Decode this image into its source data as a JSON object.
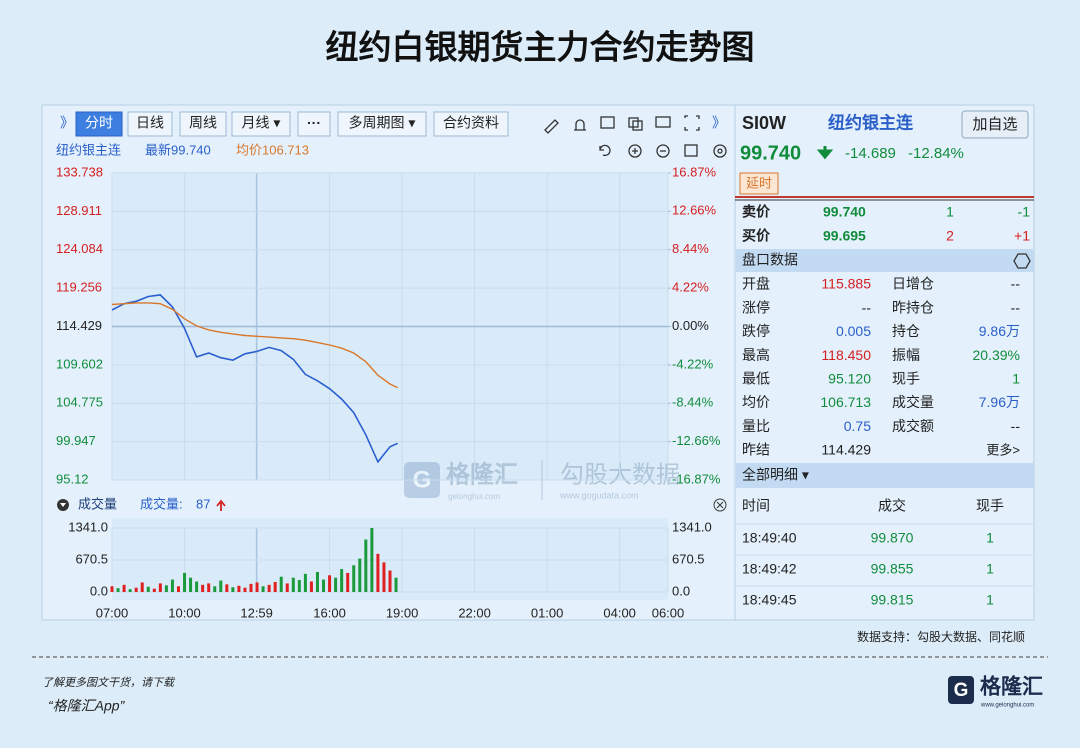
{
  "title": "纽约白银期货主力合约走势图",
  "toolbar": {
    "expand": "》",
    "buttons": [
      "分时",
      "日线",
      "周线",
      "月线 ▾",
      "···",
      "多周期图 ▾",
      "合约资料"
    ],
    "collapse": "》"
  },
  "info_line": {
    "name": "纽约银主连",
    "latest": "最新99.740",
    "average": "均价106.713"
  },
  "chart_data": [
    {
      "type": "line",
      "x": [
        "07:00",
        "07:30",
        "08:00",
        "08:30",
        "09:00",
        "09:30",
        "10:00",
        "10:30",
        "11:00",
        "11:30",
        "12:00",
        "12:30",
        "13:00",
        "13:30",
        "14:00",
        "14:30",
        "15:00",
        "15:30",
        "16:00",
        "16:30",
        "17:00",
        "17:30",
        "18:00",
        "18:30",
        "18:49"
      ],
      "series": [
        {
          "color": "#2b5fcf",
          "values": [
            116.5,
            117.3,
            117.6,
            118.2,
            118.4,
            116.9,
            114.2,
            110.6,
            111.1,
            110.5,
            110.2,
            111.0,
            111.3,
            111.8,
            111.4,
            110.3,
            108.4,
            107.6,
            106.6,
            105.3,
            103.6,
            100.8,
            97.4,
            99.3,
            99.74
          ]
        },
        {
          "color": "#d9772b",
          "values": [
            117.2,
            117.3,
            117.4,
            117.4,
            117.3,
            116.6,
            115.4,
            114.5,
            114.0,
            113.7,
            113.5,
            113.3,
            113.2,
            113.1,
            113.0,
            112.9,
            112.7,
            112.4,
            112.1,
            111.7,
            111.1,
            110.0,
            108.3,
            107.2,
            106.713
          ]
        }
      ],
      "xlim": [
        "07:00",
        "06:00"
      ],
      "xticks": [
        "07:00",
        "10:00",
        "12:59",
        "16:00",
        "19:00",
        "22:00",
        "01:00",
        "04:00",
        "06:00"
      ],
      "ylim": [
        95.12,
        133.738
      ],
      "yticks": [
        133.738,
        128.911,
        124.084,
        119.256,
        114.429,
        109.602,
        104.775,
        99.947,
        95.12
      ],
      "y2lim": [
        -16.87,
        16.87
      ],
      "y2ticks": [
        {
          "value": 16.87,
          "label": "16.87%"
        },
        {
          "value": 12.66,
          "label": "12.66%"
        },
        {
          "value": 8.44,
          "label": "8.44%"
        },
        {
          "value": 4.22,
          "label": "4.22%"
        },
        {
          "value": 0,
          "label": "0.00%"
        },
        {
          "value": -4.22,
          "label": "-4.22%"
        },
        {
          "value": -8.44,
          "label": "-8.44%"
        },
        {
          "value": -12.66,
          "label": "-12.66%"
        },
        {
          "value": -16.87,
          "label": "-16.87%"
        }
      ],
      "grid": true
    },
    {
      "type": "bar",
      "title": "成交量",
      "volume_label": "成交量:",
      "volume_value": 87,
      "x": [
        "07:00",
        "07:15",
        "07:30",
        "07:45",
        "08:00",
        "08:15",
        "08:30",
        "08:45",
        "09:00",
        "09:15",
        "09:30",
        "09:45",
        "10:00",
        "10:15",
        "10:30",
        "10:45",
        "11:00",
        "11:15",
        "11:30",
        "11:45",
        "12:00",
        "12:15",
        "12:30",
        "12:45",
        "13:00",
        "13:15",
        "13:30",
        "13:45",
        "14:00",
        "14:15",
        "14:30",
        "14:45",
        "15:00",
        "15:15",
        "15:30",
        "15:45",
        "16:00",
        "16:15",
        "16:30",
        "16:45",
        "17:00",
        "17:15",
        "17:30",
        "17:45",
        "18:00",
        "18:15",
        "18:30",
        "18:45"
      ],
      "values": [
        120,
        80,
        150,
        60,
        90,
        200,
        110,
        70,
        180,
        140,
        260,
        120,
        400,
        300,
        220,
        150,
        180,
        120,
        240,
        160,
        100,
        130,
        90,
        170,
        200,
        120,
        150,
        210,
        320,
        180,
        300,
        250,
        380,
        220,
        420,
        260,
        350,
        300,
        480,
        400,
        560,
        700,
        1100,
        1341,
        800,
        620,
        450,
        300
      ],
      "colors": [
        "#e02020",
        "#1a9a3a",
        "#e02020",
        "#1a9a3a",
        "#e02020",
        "#e02020",
        "#1a9a3a",
        "#e02020",
        "#e02020",
        "#1a9a3a",
        "#1a9a3a",
        "#e02020",
        "#1a9a3a",
        "#1a9a3a",
        "#1a9a3a",
        "#e02020",
        "#e02020",
        "#1a9a3a",
        "#1a9a3a",
        "#e02020",
        "#1a9a3a",
        "#e02020",
        "#e02020",
        "#e02020",
        "#e02020",
        "#1a9a3a",
        "#e02020",
        "#e02020",
        "#1a9a3a",
        "#e02020",
        "#1a9a3a",
        "#1a9a3a",
        "#1a9a3a",
        "#e02020",
        "#1a9a3a",
        "#1a9a3a",
        "#e02020",
        "#1a9a3a",
        "#1a9a3a",
        "#e02020",
        "#1a9a3a",
        "#1a9a3a",
        "#1a9a3a",
        "#1a9a3a",
        "#e02020",
        "#e02020",
        "#e02020",
        "#1a9a3a"
      ],
      "xlim": [
        "07:00",
        "06:00"
      ],
      "xticks": [
        "07:00",
        "10:00",
        "12:59",
        "16:00",
        "19:00",
        "22:00",
        "01:00",
        "04:00",
        "06:00"
      ],
      "ylim": [
        0,
        1341
      ],
      "yticks": [
        {
          "value": 1341,
          "label": "1341.0"
        },
        {
          "value": 670.5,
          "label": "670.5"
        },
        {
          "value": 0,
          "label": "0.0"
        }
      ]
    }
  ],
  "quote": {
    "code": "SI0W",
    "name": "纽约银主连",
    "add_button": "加自选",
    "price": "99.740",
    "change": "-14.689",
    "change_pct": "-12.84%",
    "delay": "延时",
    "ask": [
      "卖价",
      "99.740",
      "1",
      "-1"
    ],
    "bid": [
      "买价",
      "99.695",
      "2",
      "+1"
    ]
  },
  "order_book": {
    "title": "盘口数据",
    "rows": [
      [
        "开盘",
        "115.885",
        "日增仓",
        "--"
      ],
      [
        "涨停",
        "--",
        "昨持仓",
        "--"
      ],
      [
        "跌停",
        "0.005",
        "持仓",
        "9.86万"
      ],
      [
        "最高",
        "118.450",
        "振幅",
        "20.39%"
      ],
      [
        "最低",
        "95.120",
        "现手",
        "1"
      ],
      [
        "均价",
        "106.713",
        "成交量",
        "7.96万"
      ],
      [
        "量比",
        "0.75",
        "成交额",
        "--"
      ],
      [
        "昨结",
        "114.429",
        "更多>",
        ""
      ]
    ]
  },
  "ticks_table": {
    "title": "全部明细 ▾",
    "header": [
      "时间",
      "成交",
      "现手"
    ],
    "rows": [
      [
        "18:49:40",
        "99.870",
        "1"
      ],
      [
        "18:49:42",
        "99.855",
        "1"
      ],
      [
        "18:49:45",
        "99.815",
        "1"
      ]
    ]
  },
  "watermark": {
    "brand": "格隆汇",
    "brand_url": "gelonghui.com",
    "partner": "勾股大数据",
    "partner_url": "www.gogudata.com"
  },
  "footer": {
    "source": "数据支持：勾股大数据、同花顺",
    "promo": "了解更多图文干货，请下载",
    "app": "“格隆汇App”",
    "logo": "格隆汇",
    "logo_url": "www.gelonghui.com"
  }
}
